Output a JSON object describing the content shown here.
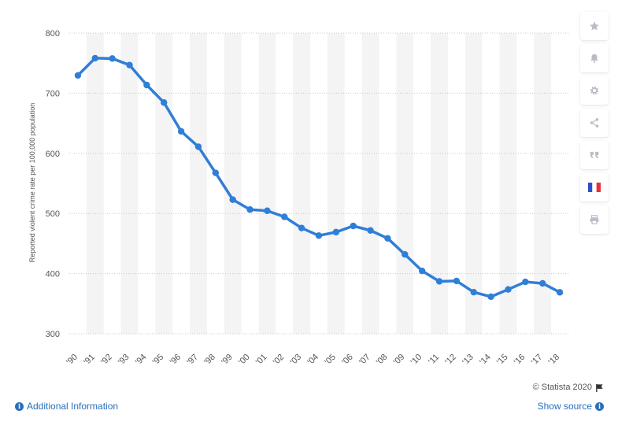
{
  "chart_data": {
    "type": "line",
    "categories": [
      "'90",
      "'91",
      "'92",
      "'93",
      "'94",
      "'95",
      "'96",
      "'97",
      "'98",
      "'99",
      "'00",
      "'01",
      "'02",
      "'03",
      "'04",
      "'05",
      "'06",
      "'07",
      "'08",
      "'09",
      "'10",
      "'11",
      "'12",
      "'13",
      "'14",
      "'15",
      "'16",
      "'17",
      "'18"
    ],
    "series": [
      {
        "values": [
          729.6,
          758.2,
          757.7,
          746.8,
          713.6,
          684.5,
          636.6,
          611.0,
          567.6,
          523.0,
          506.5,
          504.5,
          494.4,
          475.8,
          463.2,
          469.0,
          479.3,
          471.8,
          458.6,
          431.9,
          404.5,
          387.1,
          387.8,
          369.1,
          361.6,
          373.7,
          386.3,
          383.8,
          368.9
        ]
      }
    ],
    "ylabel": "Reported violent crime rate per 100,000 population",
    "ylim": [
      300,
      800
    ],
    "yticks": [
      300,
      400,
      500,
      600,
      700,
      800
    ],
    "grid": true,
    "line_color": "#2f7ed8"
  },
  "toolbar": {
    "icons": [
      "star-icon",
      "bell-icon",
      "gear-icon",
      "share-icon",
      "quote-icon",
      "flag-icon",
      "print-icon"
    ]
  },
  "footer": {
    "credit": "© Statista 2020",
    "additional_info": "Additional Information",
    "show_source": "Show source",
    "info_glyph": "i"
  }
}
